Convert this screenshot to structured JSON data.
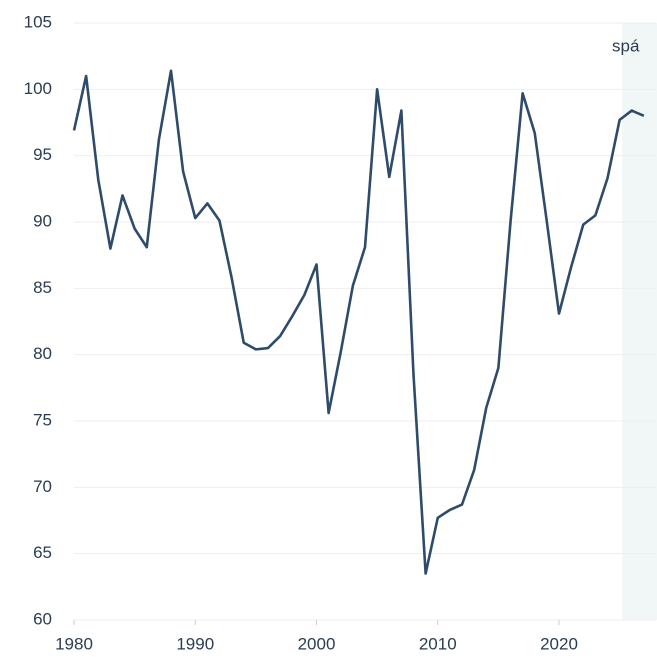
{
  "chart_data": {
    "type": "line",
    "x": [
      1980,
      1981,
      1982,
      1983,
      1984,
      1985,
      1986,
      1987,
      1988,
      1989,
      1990,
      1991,
      1992,
      1993,
      1994,
      1995,
      1996,
      1997,
      1998,
      1999,
      2000,
      2001,
      2002,
      2003,
      2004,
      2005,
      2006,
      2007,
      2008,
      2009,
      2010,
      2011,
      2012,
      2013,
      2014,
      2015,
      2016,
      2017,
      2018,
      2019,
      2020,
      2021,
      2022,
      2023,
      2024,
      2025,
      2026,
      2027
    ],
    "series": [
      {
        "color": "#2f4b6a",
        "values": [
          96.9,
          101,
          93.2,
          88,
          92,
          89.5,
          88.1,
          96.2,
          101.4,
          93.8,
          90.3,
          91.4,
          90.1,
          85.8,
          80.9,
          80.4,
          80.5,
          81.4,
          82.9,
          84.5,
          86.8,
          75.6,
          80.2,
          85.2,
          88.1,
          100,
          93.4,
          98.4,
          78.5,
          63.5,
          67.7,
          68.3,
          68.7,
          71.3,
          76,
          79,
          90,
          99.7,
          96.7,
          90,
          83.1,
          86.6,
          89.8,
          90.5,
          93.3,
          97.7,
          98.4,
          98
        ]
      }
    ],
    "xlim": [
      1980,
      2028
    ],
    "xticks": [
      1980,
      1990,
      2000,
      2010,
      2020
    ],
    "ylim": [
      60,
      105
    ],
    "yticks": [
      60,
      65,
      70,
      75,
      80,
      85,
      90,
      95,
      100,
      105
    ],
    "grid": true,
    "forecast": {
      "label": "spá",
      "start": 2025.2,
      "color": "#f1f7f7"
    }
  }
}
